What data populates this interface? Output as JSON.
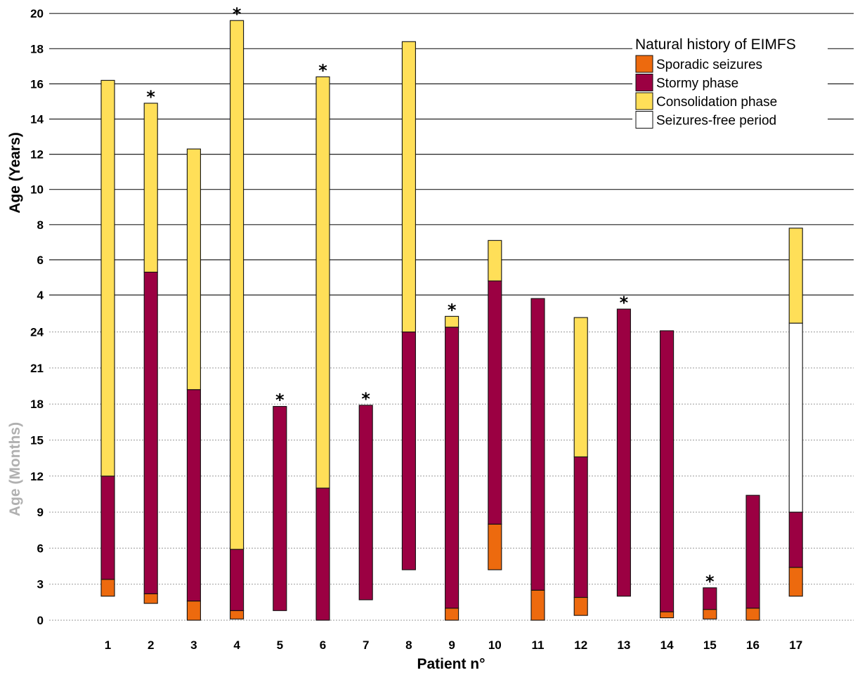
{
  "chart_data": {
    "type": "bar",
    "title": "",
    "xlabel": "Patient n°",
    "ylabel_upper": "Age (Years)",
    "ylabel_lower": "Age (Months)",
    "categories": [
      "1",
      "2",
      "3",
      "4",
      "5",
      "6",
      "7",
      "8",
      "9",
      "10",
      "11",
      "12",
      "13",
      "14",
      "15",
      "16",
      "17"
    ],
    "y_ticks_months": [
      "0",
      "3",
      "6",
      "9",
      "12",
      "15",
      "18",
      "21",
      "24"
    ],
    "y_ticks_years": [
      "4",
      "6",
      "8",
      "10",
      "12",
      "14",
      "16",
      "18",
      "20"
    ],
    "axis_note": "Broken y axis: 0–24 months (dotted grid) below, 3–20 years (solid grid) above",
    "legend": {
      "title": "Natural history of EIMFS",
      "placement": "top-right",
      "items": [
        {
          "key": "sporadic",
          "label": "Sporadic seizures",
          "color": "#ED6A0E"
        },
        {
          "key": "stormy",
          "label": "Stormy phase",
          "color": "#9B0042"
        },
        {
          "key": "consolidation",
          "label": "Consolidation phase",
          "color": "#FFDF58"
        },
        {
          "key": "seizure_free",
          "label": "Seizures-free period",
          "color": "#FFFFFF"
        }
      ]
    },
    "deceased_marker": "*",
    "bars": [
      {
        "patient": "1",
        "deceased": false,
        "segments": [
          {
            "phase": "sporadic",
            "start": {
              "months": 2
            },
            "end": {
              "months": 3.4
            }
          },
          {
            "phase": "stormy",
            "start": {
              "months": 3.4
            },
            "end": {
              "months": 12
            }
          },
          {
            "phase": "consolidation",
            "start": {
              "months": 12
            },
            "end": {
              "years": 16.2
            }
          }
        ]
      },
      {
        "patient": "2",
        "deceased": true,
        "segments": [
          {
            "phase": "sporadic",
            "start": {
              "months": 1.4
            },
            "end": {
              "months": 2.2
            }
          },
          {
            "phase": "stormy",
            "start": {
              "months": 2.2
            },
            "end": {
              "years": 5.3
            }
          },
          {
            "phase": "consolidation",
            "start": {
              "years": 5.3
            },
            "end": {
              "years": 14.9
            }
          }
        ]
      },
      {
        "patient": "3",
        "deceased": false,
        "segments": [
          {
            "phase": "sporadic",
            "start": {
              "months": 0
            },
            "end": {
              "months": 1.6
            }
          },
          {
            "phase": "stormy",
            "start": {
              "months": 1.6
            },
            "end": {
              "months": 19.2
            }
          },
          {
            "phase": "consolidation",
            "start": {
              "months": 19.2
            },
            "end": {
              "years": 12.3
            }
          }
        ]
      },
      {
        "patient": "4",
        "deceased": true,
        "segments": [
          {
            "phase": "sporadic",
            "start": {
              "months": 0.1
            },
            "end": {
              "months": 0.8
            }
          },
          {
            "phase": "stormy",
            "start": {
              "months": 0.8
            },
            "end": {
              "months": 5.9
            }
          },
          {
            "phase": "consolidation",
            "start": {
              "months": 5.9
            },
            "end": {
              "years": 19.6
            }
          }
        ]
      },
      {
        "patient": "5",
        "deceased": true,
        "segments": [
          {
            "phase": "stormy",
            "start": {
              "months": 0.8
            },
            "end": {
              "months": 17.8
            }
          }
        ]
      },
      {
        "patient": "6",
        "deceased": true,
        "segments": [
          {
            "phase": "stormy",
            "start": {
              "months": 0
            },
            "end": {
              "months": 11
            }
          },
          {
            "phase": "consolidation",
            "start": {
              "months": 11
            },
            "end": {
              "years": 16.4
            }
          }
        ]
      },
      {
        "patient": "7",
        "deceased": true,
        "segments": [
          {
            "phase": "stormy",
            "start": {
              "months": 1.7
            },
            "end": {
              "months": 17.9
            }
          }
        ]
      },
      {
        "patient": "8",
        "deceased": false,
        "segments": [
          {
            "phase": "stormy",
            "start": {
              "months": 4.2
            },
            "end": {
              "months": 24
            }
          },
          {
            "phase": "consolidation",
            "start": {
              "months": 24
            },
            "end": {
              "years": 18.4
            }
          }
        ]
      },
      {
        "patient": "9",
        "deceased": true,
        "segments": [
          {
            "phase": "sporadic",
            "start": {
              "months": 0
            },
            "end": {
              "months": 1
            }
          },
          {
            "phase": "stormy",
            "start": {
              "months": 1
            },
            "end": {
              "months": 24.4
            }
          },
          {
            "phase": "consolidation",
            "start": {
              "months": 24.4
            },
            "end": {
              "months": 25.3
            }
          }
        ]
      },
      {
        "patient": "10",
        "deceased": false,
        "segments": [
          {
            "phase": "sporadic",
            "start": {
              "months": 4.2
            },
            "end": {
              "months": 8
            }
          },
          {
            "phase": "stormy",
            "start": {
              "months": 8
            },
            "end": {
              "years": 4.8
            }
          },
          {
            "phase": "consolidation",
            "start": {
              "years": 4.8
            },
            "end": {
              "years": 7.1
            }
          }
        ]
      },
      {
        "patient": "11",
        "deceased": false,
        "segments": [
          {
            "phase": "sporadic",
            "start": {
              "months": 0
            },
            "end": {
              "months": 2.5
            }
          },
          {
            "phase": "stormy",
            "start": {
              "months": 2.5
            },
            "end": {
              "years": 3.8
            }
          }
        ]
      },
      {
        "patient": "12",
        "deceased": false,
        "segments": [
          {
            "phase": "sporadic",
            "start": {
              "months": 0.4
            },
            "end": {
              "months": 1.9
            }
          },
          {
            "phase": "stormy",
            "start": {
              "months": 1.9
            },
            "end": {
              "months": 13.6
            }
          },
          {
            "phase": "consolidation",
            "start": {
              "months": 13.6
            },
            "end": {
              "months": 25.2
            }
          }
        ]
      },
      {
        "patient": "13",
        "deceased": true,
        "segments": [
          {
            "phase": "stormy",
            "start": {
              "months": 2
            },
            "end": {
              "years": 3.2
            }
          }
        ]
      },
      {
        "patient": "14",
        "deceased": false,
        "segments": [
          {
            "phase": "sporadic",
            "start": {
              "months": 0.2
            },
            "end": {
              "months": 0.7
            }
          },
          {
            "phase": "stormy",
            "start": {
              "months": 0.7
            },
            "end": {
              "months": 24.1
            }
          }
        ]
      },
      {
        "patient": "15",
        "deceased": true,
        "segments": [
          {
            "phase": "sporadic",
            "start": {
              "months": 0.1
            },
            "end": {
              "months": 0.9
            }
          },
          {
            "phase": "stormy",
            "start": {
              "months": 0.9
            },
            "end": {
              "months": 2.7
            }
          }
        ]
      },
      {
        "patient": "16",
        "deceased": false,
        "segments": [
          {
            "phase": "sporadic",
            "start": {
              "months": 0
            },
            "end": {
              "months": 1
            }
          },
          {
            "phase": "stormy",
            "start": {
              "months": 1
            },
            "end": {
              "months": 10.4
            }
          }
        ]
      },
      {
        "patient": "17",
        "deceased": false,
        "segments": [
          {
            "phase": "sporadic",
            "start": {
              "months": 2
            },
            "end": {
              "months": 4.4
            }
          },
          {
            "phase": "stormy",
            "start": {
              "months": 4.4
            },
            "end": {
              "months": 9
            }
          },
          {
            "phase": "seizure_free",
            "start": {
              "months": 9
            },
            "end": {
              "years": 2.4
            }
          },
          {
            "phase": "consolidation",
            "start": {
              "years": 2.4
            },
            "end": {
              "years": 7.8
            }
          }
        ]
      }
    ]
  }
}
